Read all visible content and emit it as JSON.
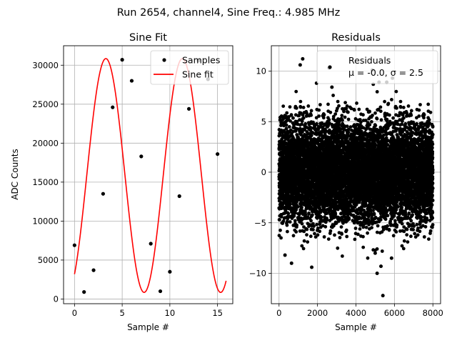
{
  "suptitle": "Run 2654, channel4, Sine Freq.: 4.985 MHz",
  "chart_data": [
    {
      "type": "scatter+line",
      "title": "Sine Fit",
      "xlabel": "Sample #",
      "ylabel": "ADC Counts",
      "xlim": [
        -1.15,
        16.6
      ],
      "ylim": [
        -600,
        32500
      ],
      "xticks": [
        0,
        5,
        10,
        15
      ],
      "yticks": [
        0,
        5000,
        10000,
        15000,
        20000,
        25000,
        30000
      ],
      "grid": true,
      "legend": {
        "placement": "top-right",
        "entries": [
          "Samples",
          "Sine fit"
        ]
      },
      "samples": {
        "name": "Samples",
        "color": "#000000",
        "x": [
          0,
          1,
          2,
          3,
          4,
          5,
          6,
          7,
          8,
          9,
          10,
          11,
          12,
          13,
          14,
          15
        ],
        "y": [
          6900,
          900,
          3700,
          13500,
          24600,
          30700,
          28000,
          18300,
          7100,
          1000,
          3500,
          13200,
          24400,
          30600,
          28200,
          18600
        ]
      },
      "fit": {
        "name": "Sine fit",
        "color": "#ff0000",
        "model": "offset + amplitude*sin(2*pi*x/period + phase)",
        "offset": 15850,
        "amplitude": 15000,
        "period": 8.025,
        "phase": -1.004,
        "x_range": [
          0,
          15.9
        ]
      }
    },
    {
      "type": "scatter",
      "title": "Residuals",
      "xlabel": "Sample #",
      "ylabel": "",
      "xlim": [
        -400,
        8400
      ],
      "ylim": [
        -13,
        12.5
      ],
      "xticks": [
        0,
        2000,
        4000,
        6000,
        8000
      ],
      "yticks": [
        -10,
        -5,
        0,
        5,
        10
      ],
      "grid": true,
      "legend": {
        "placement": "top-right",
        "entries": [
          "Residuals",
          "μ = -0.0, σ = 2.5"
        ]
      },
      "series": {
        "name": "Residuals",
        "color": "#000000",
        "n_points": 8000,
        "mean": 0.0,
        "std": 2.5,
        "typical_band": [
          -6.5,
          7
        ],
        "notable_outliers": [
          {
            "x": 1230,
            "y": 11.2
          },
          {
            "x": 1100,
            "y": 10.6
          },
          {
            "x": 2600,
            "y": 10.3
          },
          {
            "x": 4850,
            "y": 10.1
          },
          {
            "x": 5400,
            "y": -12.2
          },
          {
            "x": 5100,
            "y": -10.0
          },
          {
            "x": 5300,
            "y": -9.3
          },
          {
            "x": 1700,
            "y": -9.4
          },
          {
            "x": 650,
            "y": -9.0
          },
          {
            "x": 5850,
            "y": -8.5
          },
          {
            "x": 5900,
            "y": 9.3
          },
          {
            "x": 5200,
            "y": 8.9
          },
          {
            "x": 5600,
            "y": 8.9
          },
          {
            "x": 1950,
            "y": 8.8
          },
          {
            "x": 2750,
            "y": 8.4
          },
          {
            "x": 310,
            "y": -8.2
          },
          {
            "x": 5000,
            "y": -8.0
          },
          {
            "x": 4900,
            "y": 8.7
          }
        ]
      }
    }
  ],
  "labels": {
    "left_title": "Sine Fit",
    "left_xlabel": "Sample #",
    "left_ylabel": "ADC Counts",
    "left_legend_samples": "Samples",
    "left_legend_fit": "Sine fit",
    "right_title": "Residuals",
    "right_xlabel": "Sample #",
    "right_legend_series": "Residuals",
    "right_legend_stats": "μ = -0.0, σ = 2.5"
  }
}
